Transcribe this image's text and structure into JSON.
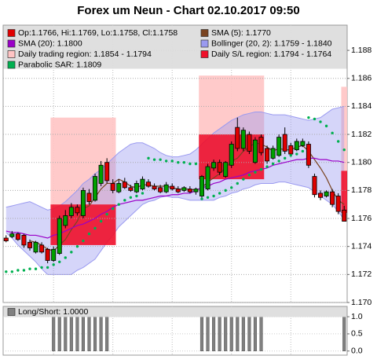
{
  "chart_data": [
    {
      "type": "candlestick",
      "title": "Forex um Neun - Chart 02.10.2017 09:50",
      "categories": [
        null,
        null,
        null,
        null,
        null,
        null,
        null,
        null,
        null,
        null,
        null,
        null,
        null,
        null,
        null,
        null,
        null,
        null,
        null,
        null,
        null,
        null,
        null,
        null,
        null,
        null,
        null,
        null,
        null,
        null,
        null,
        null,
        null,
        null,
        null,
        null,
        null,
        null,
        null,
        null,
        null,
        null,
        null,
        null,
        null,
        null,
        null,
        null,
        null,
        null,
        null,
        null,
        null,
        null,
        null,
        null,
        null,
        null
      ],
      "ylim": [
        1.17,
        1.1898
      ],
      "yticks": [
        {
          "value": 1.17,
          "label": "1.170"
        },
        1.172,
        1.174,
        1.176,
        1.178,
        {
          "value": 1.18,
          "label": "1.180"
        },
        1.182,
        1.184,
        1.186,
        1.188
      ],
      "grid": true,
      "series": [
        {
          "name": "Op:1.1766, Hi:1.1769, Lo:1.1758, Cl:1.1758",
          "kind": "candlestick",
          "color": "#e00000",
          "up_color": "#00a000",
          "open": [
            1.1746,
            1.1747,
            1.1749,
            1.1748,
            1.1743,
            1.1736,
            1.1741,
            1.1738,
            1.173,
            1.1735,
            1.1755,
            1.1762,
            1.1768,
            1.1762,
            1.1778,
            1.1773,
            1.1785,
            1.18,
            1.1785,
            1.1779,
            1.1786,
            1.1782,
            1.1779,
            1.1781,
            1.1786,
            1.1783,
            1.1782,
            1.1779,
            1.1783,
            1.1781,
            1.178,
            1.1781,
            1.1779,
            1.1776,
            1.1781,
            1.1796,
            1.18,
            1.179,
            1.1798,
            1.1825,
            1.181,
            1.182,
            1.18,
            1.1818,
            1.181,
            1.1803,
            1.1805,
            1.182,
            1.1812,
            1.1809,
            1.1812,
            1.1813,
            1.179,
            1.1778,
            1.1776,
            1.1779,
            1.1776,
            1.1766
          ],
          "high": [
            1.1748,
            1.1751,
            1.175,
            1.1749,
            1.1745,
            1.1744,
            1.1743,
            1.1739,
            1.174,
            1.1762,
            1.1766,
            1.1771,
            1.177,
            1.1782,
            1.1781,
            1.1792,
            1.1801,
            1.1803,
            1.1788,
            1.1788,
            1.1789,
            1.1784,
            1.1787,
            1.179,
            1.1788,
            1.1785,
            1.1784,
            1.1786,
            1.1785,
            1.1783,
            1.1783,
            1.1783,
            1.1782,
            1.1791,
            1.1799,
            1.1802,
            1.1802,
            1.1801,
            1.1815,
            1.1832,
            1.1825,
            1.1822,
            1.1818,
            1.182,
            1.1812,
            1.1812,
            1.182,
            1.1825,
            1.1814,
            1.1817,
            1.1817,
            1.1815,
            1.1792,
            1.178,
            1.178,
            1.1781,
            1.1778,
            1.1769
          ],
          "low": [
            1.1743,
            1.1746,
            1.1744,
            1.1739,
            1.1737,
            1.1735,
            1.1735,
            1.1728,
            1.1729,
            1.1734,
            1.1753,
            1.176,
            1.1762,
            1.176,
            1.177,
            1.1772,
            1.1783,
            1.1785,
            1.1778,
            1.1778,
            1.1781,
            1.1779,
            1.1778,
            1.178,
            1.1782,
            1.178,
            1.1778,
            1.1778,
            1.178,
            1.1778,
            1.1779,
            1.1778,
            1.1777,
            1.1774,
            1.178,
            1.1794,
            1.1791,
            1.1789,
            1.1796,
            1.1808,
            1.1808,
            1.1806,
            1.1799,
            1.1805,
            1.1799,
            1.1802,
            1.1804,
            1.1806,
            1.1804,
            1.1808,
            1.1811,
            1.1796,
            1.1775,
            1.1773,
            1.1775,
            1.1768,
            1.1763,
            1.1758
          ],
          "close": [
            1.1744,
            1.1749,
            1.1745,
            1.1741,
            1.1739,
            1.1743,
            1.1736,
            1.173,
            1.1738,
            1.176,
            1.1762,
            1.1768,
            1.1764,
            1.178,
            1.1772,
            1.179,
            1.1798,
            1.1787,
            1.178,
            1.1785,
            1.1782,
            1.178,
            1.1785,
            1.1788,
            1.1783,
            1.1781,
            1.1779,
            1.1784,
            1.1781,
            1.1779,
            1.1782,
            1.1779,
            1.1781,
            1.179,
            1.1797,
            1.18,
            1.1793,
            1.18,
            1.1813,
            1.181,
            1.1823,
            1.1808,
            1.1816,
            1.1807,
            1.1801,
            1.181,
            1.1818,
            1.1808,
            1.1806,
            1.1815,
            1.1815,
            1.1798,
            1.1777,
            1.1775,
            1.1779,
            1.177,
            1.1765,
            1.1758
          ]
        },
        {
          "name": "SMA (5): 1.1770",
          "kind": "line",
          "color": "#7a4420",
          "values": [
            null,
            null,
            null,
            null,
            1.1744,
            1.1743,
            1.1741,
            1.1738,
            1.1737,
            1.1741,
            1.1745,
            1.1752,
            1.1758,
            1.1767,
            1.1769,
            1.1775,
            1.1781,
            1.1785,
            1.1785,
            1.1788,
            1.1786,
            1.1783,
            1.1782,
            1.1784,
            1.1784,
            1.1783,
            1.1783,
            1.1783,
            1.1782,
            1.1781,
            1.1781,
            1.1781,
            1.178,
            1.1782,
            1.1786,
            1.1789,
            1.1792,
            1.1796,
            1.1801,
            1.1803,
            1.1808,
            1.1811,
            1.1814,
            1.1813,
            1.1811,
            1.1808,
            1.181,
            1.1809,
            1.1809,
            1.1811,
            1.1812,
            1.1808,
            1.1802,
            1.1796,
            1.1789,
            1.178,
            1.1773,
            1.177
          ]
        },
        {
          "name": "SMA (20): 1.1800",
          "kind": "line",
          "color": "#9a00c8",
          "values": [
            1.1751,
            1.175,
            1.175,
            1.1749,
            1.1748,
            1.1748,
            1.1747,
            1.1746,
            1.1748,
            1.1749,
            1.1751,
            1.1753,
            1.1755,
            1.1756,
            1.1758,
            1.176,
            1.1763,
            1.1765,
            1.1768,
            1.177,
            1.1771,
            1.1772,
            1.1773,
            1.1773,
            1.1774,
            1.1775,
            1.1776,
            1.1776,
            1.1777,
            1.1777,
            1.1778,
            1.1778,
            1.178,
            1.1782,
            1.1783,
            1.1785,
            1.1786,
            1.1788,
            1.1789,
            1.179,
            1.1791,
            1.1793,
            1.1794,
            1.1795,
            1.1796,
            1.1798,
            1.1799,
            1.18,
            1.1801,
            1.1802,
            1.1802,
            1.1803,
            1.1803,
            1.1802,
            1.1802,
            1.1801,
            1.1801,
            1.18
          ]
        },
        {
          "name": "Bollinger (20, 2): 1.1759 - 1.1840",
          "kind": "band",
          "color": "#9a9af0",
          "upper": [
            1.1768,
            1.1769,
            1.177,
            1.1771,
            1.1772,
            1.177,
            1.1768,
            1.1766,
            1.1767,
            1.1769,
            1.1772,
            1.1776,
            1.178,
            1.1785,
            1.1788,
            1.1792,
            1.1795,
            1.1799,
            1.1803,
            1.1807,
            1.181,
            1.1813,
            1.1814,
            1.1814,
            1.1812,
            1.181,
            1.1807,
            1.1805,
            1.1804,
            1.1804,
            1.1805,
            1.1806,
            1.1809,
            1.1813,
            1.1817,
            1.1821,
            1.1824,
            1.1827,
            1.183,
            1.1832,
            1.1834,
            1.1835,
            1.1836,
            1.1836,
            1.1835,
            1.1834,
            1.1834,
            1.1834,
            1.1833,
            1.1832,
            1.1831,
            1.183,
            1.1831,
            1.1832,
            1.1835,
            1.1838,
            1.1839,
            1.184
          ],
          "lower": [
            1.175,
            1.1746,
            1.1741,
            1.1737,
            1.1733,
            1.1729,
            1.1724,
            1.172,
            1.172,
            1.172,
            1.172,
            1.172,
            1.1723,
            1.1725,
            1.1728,
            1.1731,
            1.1737,
            1.1743,
            1.1748,
            1.1754,
            1.1758,
            1.1762,
            1.1766,
            1.177,
            1.1772,
            1.1773,
            1.1775,
            1.1776,
            1.1775,
            1.1775,
            1.1774,
            1.1773,
            1.1773,
            1.1773,
            1.1773,
            1.1773,
            1.1775,
            1.1776,
            1.1778,
            1.1779,
            1.1781,
            1.1782,
            1.1784,
            1.1785,
            1.1785,
            1.1785,
            1.1786,
            1.1786,
            1.1785,
            1.1784,
            1.1783,
            1.1782,
            1.1779,
            1.1776,
            1.1773,
            1.177,
            1.1765,
            1.1759
          ]
        },
        {
          "name": "Daily trading region: 1.1854 - 1.1794",
          "kind": "region",
          "color": "#ffc4c4",
          "items": [
            {
              "start": 8,
              "end": 18,
              "high": 1.1832,
              "low": 1.177
            },
            {
              "start": 33,
              "end": 43,
              "high": 1.1862,
              "low": 1.182
            },
            {
              "start": 57,
              "end": 57,
              "high": 1.1854,
              "low": 1.1794
            }
          ]
        },
        {
          "name": "Daily S/L region: 1.1794 - 1.1764",
          "kind": "region",
          "color": "#f0102a",
          "items": [
            {
              "start": 8,
              "end": 18,
              "high": 1.177,
              "low": 1.1741
            },
            {
              "start": 33,
              "end": 43,
              "high": 1.182,
              "low": 1.1788
            },
            {
              "start": 57,
              "end": 57,
              "high": 1.1794,
              "low": 1.1764
            }
          ]
        },
        {
          "name": "Parabolic SAR: 1.1809",
          "kind": "dots",
          "color": "#00b050",
          "values": [
            1.1722,
            1.1722,
            1.1723,
            1.1723,
            1.1724,
            1.1724,
            1.1725,
            1.1725,
            1.1727,
            1.1729,
            1.1732,
            1.1736,
            1.174,
            1.1744,
            1.1749,
            1.1753,
            1.1758,
            1.1763,
            1.1767,
            1.177,
            1.1773,
            1.1775,
            1.1776,
            1.1778,
            1.1803,
            1.1802,
            1.1802,
            1.1801,
            1.1801,
            1.18,
            1.18,
            1.1799,
            1.1799,
            1.1774,
            1.1775,
            1.1776,
            1.1778,
            1.178,
            1.1782,
            1.1785,
            1.1788,
            1.1791,
            1.1793,
            1.1795,
            1.1797,
            1.1799,
            1.1801,
            1.1803,
            1.1805,
            1.1806,
            1.1808,
            1.1832,
            1.1831,
            1.1829,
            1.1826,
            1.1821,
            1.1815,
            1.1809
          ]
        }
      ]
    },
    {
      "type": "bar",
      "title": "Long/Short: 1.0000",
      "color": "#808080",
      "ylim": [
        -0.12,
        1.3
      ],
      "yticks": [
        {
          "value": 0,
          "label": "0.0"
        },
        0.5,
        {
          "value": 1,
          "label": "1.0"
        }
      ],
      "values": [
        0,
        0,
        0,
        0,
        0,
        0,
        0,
        0,
        1,
        1,
        1,
        1,
        1,
        1,
        1,
        1,
        1,
        1,
        0,
        0,
        0,
        0,
        0,
        0,
        0,
        0,
        0,
        0,
        0,
        0,
        0,
        0,
        0,
        1,
        1,
        1,
        1,
        1,
        1,
        1,
        1,
        1,
        1,
        1,
        0,
        0,
        0,
        0,
        0,
        0,
        0,
        0,
        0,
        0,
        0,
        0,
        0,
        1
      ]
    }
  ]
}
